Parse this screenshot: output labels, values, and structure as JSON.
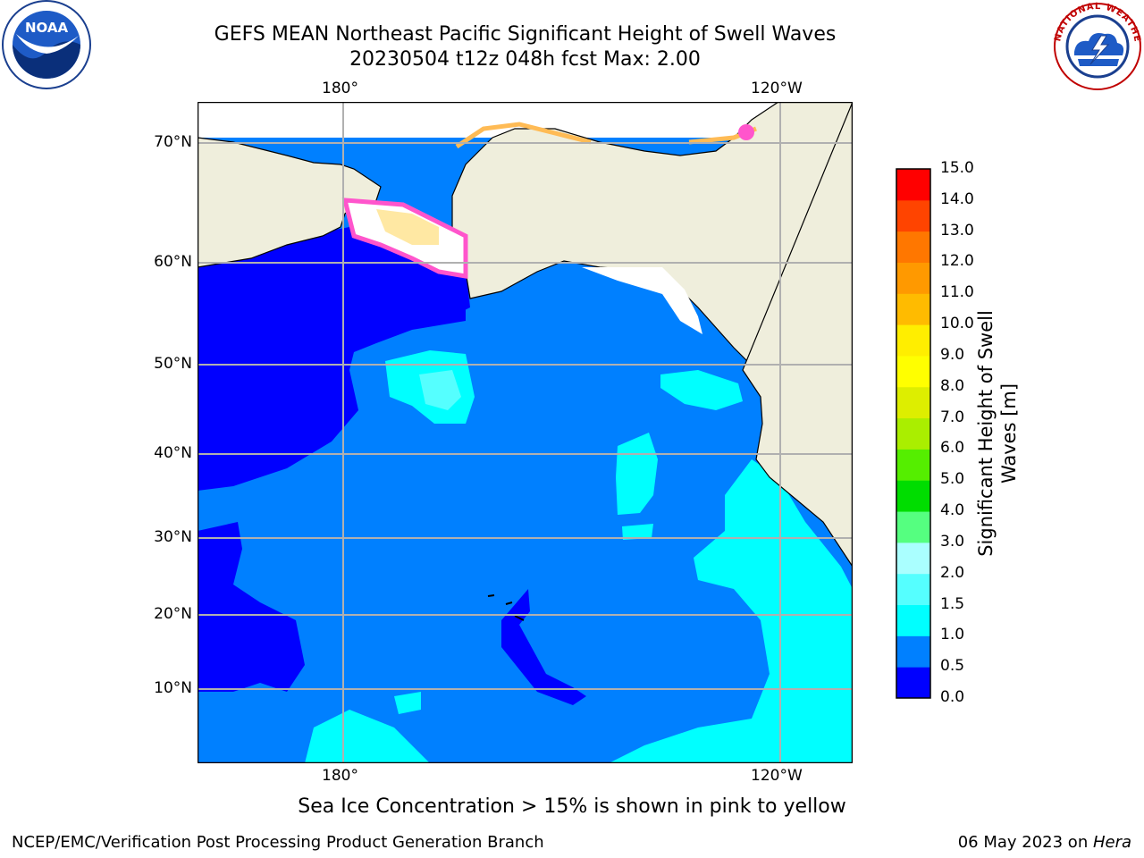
{
  "title": {
    "line1": "GEFS MEAN Northeast Pacific Significant Height of Swell Waves",
    "line2": "20230504 t12z 048h fcst   Max: 2.00"
  },
  "map": {
    "lon_labels": [
      "180°",
      "120°W"
    ],
    "lat_labels": [
      "70°N",
      "60°N",
      "50°N",
      "40°N",
      "30°N",
      "20°N",
      "10°N"
    ],
    "colors": {
      "land": "#efeedc",
      "band_0_05": "#0000ff",
      "band_05_10": "#0080ff",
      "band_10_15": "#00ffff",
      "band_15_20": "#55ffff",
      "ice_pink": "#ff55cc",
      "ice_yellow": "#ffd966",
      "grid": "#b0b0b0"
    }
  },
  "colorbar": {
    "label_line1": "Significant Height of Swell",
    "label_line2": "Waves [m]",
    "ticks": [
      "15.0",
      "14.0",
      "13.0",
      "12.0",
      "11.0",
      "10.0",
      "9.0",
      "8.0",
      "7.0",
      "6.0",
      "5.0",
      "4.0",
      "3.0",
      "2.0",
      "1.5",
      "1.0",
      "0.5",
      "0.0"
    ],
    "colors": [
      "#0000ff",
      "#0080ff",
      "#00ffff",
      "#55ffff",
      "#aaffff",
      "#55ff80",
      "#00dd00",
      "#55ee00",
      "#aaee00",
      "#ddee00",
      "#ffff00",
      "#ffee00",
      "#ffbb00",
      "#ff9900",
      "#ff7700",
      "#ff4400",
      "#ff0000"
    ]
  },
  "ice_note": "Sea Ice Concentration > 15% is shown in pink to yellow",
  "footer": {
    "left": "NCEP/EMC/Verification Post Processing Product Generation Branch",
    "right_prefix": "06 May 2023 on ",
    "right_host": "Hera"
  },
  "logos": {
    "noaa_text": "NOAA",
    "nws_text": "NATIONAL WEATHER SERVICE"
  }
}
